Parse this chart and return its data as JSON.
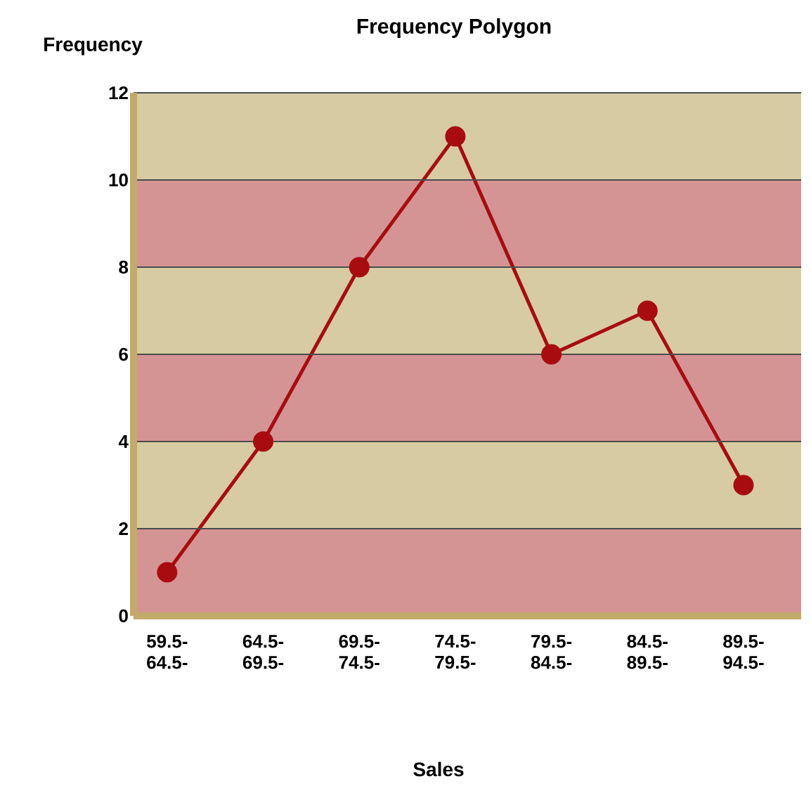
{
  "chart_data": {
    "type": "line",
    "title": "Frequency Polygon",
    "xlabel": "Sales",
    "ylabel": "Frequency",
    "categories": [
      "59.5- 64.5-",
      "64.5- 69.5-",
      "69.5- 74.5-",
      "74.5- 79.5-",
      "79.5- 84.5-",
      "84.5- 89.5-",
      "89.5- 94.5-"
    ],
    "series": [
      {
        "color": "#a80c10",
        "values": [
          1,
          4,
          8,
          11,
          6,
          7,
          3
        ]
      }
    ],
    "ylim": [
      0,
      12
    ],
    "yticks": [
      0,
      2,
      4,
      6,
      8,
      10,
      12
    ],
    "grid": "y",
    "marker": "circle",
    "line_style": "solid",
    "bands": [
      {
        "axis": "y",
        "from": 0,
        "to": 2,
        "color": "#d49494"
      },
      {
        "axis": "y",
        "from": 2,
        "to": 4,
        "color": "#d7cba3"
      },
      {
        "axis": "y",
        "from": 4,
        "to": 6,
        "color": "#d49494"
      },
      {
        "axis": "y",
        "from": 6,
        "to": 8,
        "color": "#d7cba3"
      },
      {
        "axis": "y",
        "from": 8,
        "to": 10,
        "color": "#d49494"
      },
      {
        "axis": "y",
        "from": 10,
        "to": 12,
        "color": "#d7cba3"
      }
    ]
  }
}
